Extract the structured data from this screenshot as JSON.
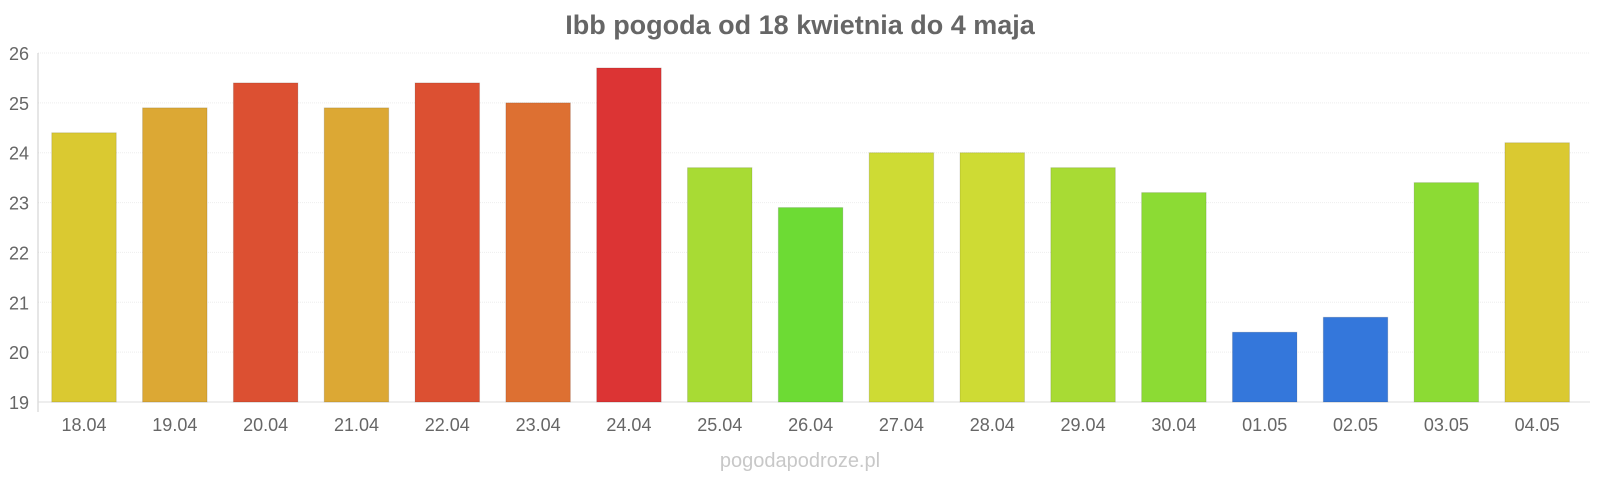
{
  "chart_data": {
    "type": "bar",
    "title": "Ibb pogoda od 18 kwietnia do 4 maja",
    "xlabel": "",
    "ylabel": "",
    "ylim": [
      19,
      26
    ],
    "yticks": [
      19,
      20,
      21,
      22,
      23,
      24,
      25,
      26
    ],
    "grid": true,
    "categories": [
      "18.04",
      "19.04",
      "20.04",
      "21.04",
      "22.04",
      "23.04",
      "24.04",
      "25.04",
      "26.04",
      "27.04",
      "28.04",
      "29.04",
      "30.04",
      "01.05",
      "02.05",
      "03.05",
      "04.05"
    ],
    "values": [
      24.4,
      24.9,
      25.4,
      24.9,
      25.4,
      25.0,
      25.7,
      23.7,
      22.9,
      24.0,
      24.0,
      23.7,
      23.2,
      20.4,
      20.7,
      23.4,
      24.2
    ],
    "colors": [
      "#dac931",
      "#dca834",
      "#dc5032",
      "#dca834",
      "#dc5032",
      "#dd7032",
      "#dc3434",
      "#a8db34",
      "#6ddb34",
      "#cedb34",
      "#cedb34",
      "#a8db34",
      "#8cdb34",
      "#3477db",
      "#3477db",
      "#8cdb34",
      "#dac931"
    ]
  },
  "watermark": "pogodapodroze.pl"
}
